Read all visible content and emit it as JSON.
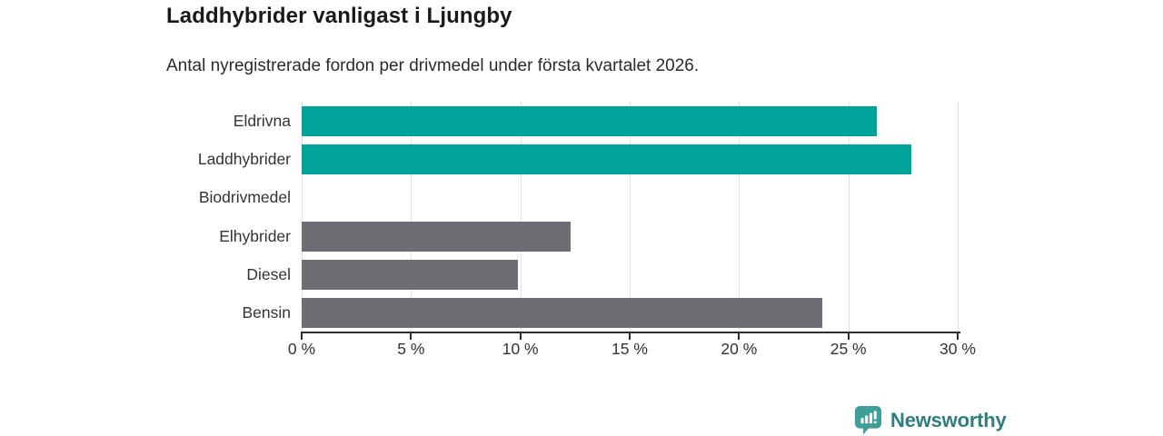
{
  "header": {
    "title": "Laddhybrider vanligast i Ljungby",
    "subtitle": "Antal nyregistrerade fordon per drivmedel under första kvartalet 2026."
  },
  "chart_data": {
    "type": "bar",
    "orientation": "horizontal",
    "title": "Laddhybrider vanligast i Ljungby",
    "subtitle": "Antal nyregistrerade fordon per drivmedel under första kvartalet 2026.",
    "categories": [
      "Eldrivna",
      "Laddhybrider",
      "Biodrivmedel",
      "Elhybrider",
      "Diesel",
      "Bensin"
    ],
    "values": [
      26.3,
      27.9,
      0,
      12.3,
      9.9,
      23.8
    ],
    "bar_colors": [
      "#00a49a",
      "#00a49a",
      "#6d6d73",
      "#6d6d73",
      "#6d6d73",
      "#6d6d73"
    ],
    "unit": "%",
    "xlabel": "",
    "ylabel": "",
    "xlim": [
      0,
      30
    ],
    "x_ticks": [
      0,
      5,
      10,
      15,
      20,
      25,
      30
    ],
    "x_tick_labels": [
      "0 %",
      "5 %",
      "10 %",
      "15 %",
      "20 %",
      "25 %",
      "30 %"
    ],
    "grid": true,
    "legend": false
  },
  "colors": {
    "highlight_teal": "#00a49a",
    "neutral_gray": "#6d6d73",
    "axis": "#2e2e2e",
    "gridline": "#e3e3e3",
    "title_text": "#1a1a1a",
    "body_text": "#333333",
    "logo_teal": "#2e7e7b",
    "logo_icon_teal": "#3f9f98"
  },
  "footer": {
    "brand": "Newsworthy",
    "icon": "newsworthy-chart-bubble-icon"
  }
}
